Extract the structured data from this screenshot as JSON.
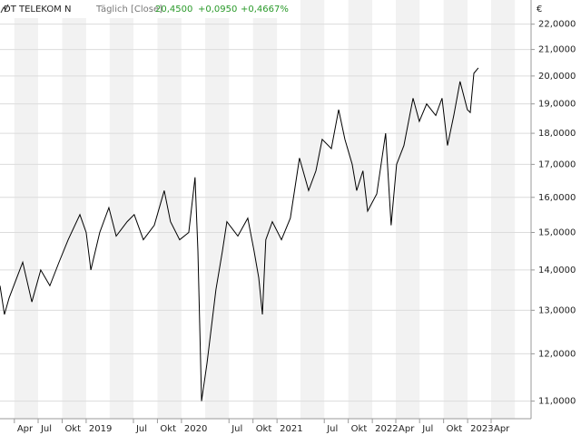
{
  "chart_data": {
    "type": "line",
    "title": "DT TELEKOM N",
    "subtitle": "Täglich [Close]",
    "last_value": "20,4500",
    "change": "+0,0950",
    "change_percent": "+0,4667%",
    "unit": "€",
    "log_scale": true,
    "grid": true,
    "series": [
      {
        "name": "DT TELEKOM N",
        "color": "#000000",
        "x": [
          "2018-02-05",
          "2018-02-22",
          "2018-03-12",
          "2018-05-03",
          "2018-06-07",
          "2018-07-11",
          "2018-08-15",
          "2018-09-19",
          "2018-10-24",
          "2018-12-08",
          "2019-01-01",
          "2019-01-19",
          "2019-02-22",
          "2019-03-29",
          "2019-04-26",
          "2019-06-07",
          "2019-07-04",
          "2019-08-08",
          "2019-09-19",
          "2019-10-27",
          "2019-11-20",
          "2019-12-25",
          "2020-01-29",
          "2020-02-22",
          "2020-03-04",
          "2020-03-18",
          "2020-04-08",
          "2020-05-12",
          "2020-06-06",
          "2020-06-23",
          "2020-08-04",
          "2020-09-11",
          "2020-10-05",
          "2020-10-23",
          "2020-11-06",
          "2020-11-19",
          "2020-12-14",
          "2021-01-18",
          "2021-02-21",
          "2021-03-28",
          "2021-05-02",
          "2021-05-30",
          "2021-06-23",
          "2021-07-28",
          "2021-08-25",
          "2021-09-18",
          "2021-10-16",
          "2021-11-02",
          "2021-11-26",
          "2021-12-14",
          "2022-01-18",
          "2022-02-21",
          "2022-03-14",
          "2022-04-04",
          "2022-05-02",
          "2022-06-06",
          "2022-06-30",
          "2022-07-28",
          "2022-09-01",
          "2022-09-25",
          "2022-10-16",
          "2022-11-09",
          "2022-12-03",
          "2022-12-31",
          "2023-01-11",
          "2023-01-25",
          "2023-02-11"
        ],
        "values": [
          13.6,
          12.9,
          13.3,
          14.2,
          13.2,
          14.0,
          13.6,
          14.2,
          14.8,
          15.5,
          15.0,
          14.0,
          15.0,
          15.7,
          14.9,
          15.3,
          15.5,
          14.8,
          15.2,
          16.2,
          15.3,
          14.8,
          15.0,
          16.6,
          14.5,
          11.0,
          11.8,
          13.5,
          14.5,
          15.3,
          14.9,
          15.4,
          14.5,
          13.8,
          12.9,
          14.8,
          15.3,
          14.8,
          15.4,
          17.2,
          16.2,
          16.8,
          17.8,
          17.5,
          18.8,
          17.8,
          17.0,
          16.2,
          16.8,
          15.6,
          16.1,
          18.0,
          15.2,
          17.0,
          17.6,
          19.2,
          18.4,
          19.0,
          18.6,
          19.2,
          17.6,
          18.6,
          19.8,
          18.8,
          18.7,
          20.1,
          20.3
        ]
      }
    ],
    "xlim": [
      "2018-02-05",
      "2023-09-01"
    ],
    "xticks": [
      {
        "value": "2018-04-01",
        "label": "Apr"
      },
      {
        "value": "2018-07-01",
        "label": "Jul"
      },
      {
        "value": "2018-10-01",
        "label": "Okt"
      },
      {
        "value": "2019-01-01",
        "label": "2019"
      },
      {
        "value": "2019-07-01",
        "label": "Jul"
      },
      {
        "value": "2019-10-01",
        "label": "Okt"
      },
      {
        "value": "2020-01-01",
        "label": "2020"
      },
      {
        "value": "2020-07-01",
        "label": "Jul"
      },
      {
        "value": "2020-10-01",
        "label": "Okt"
      },
      {
        "value": "2021-01-01",
        "label": "2021"
      },
      {
        "value": "2021-07-01",
        "label": "Jul"
      },
      {
        "value": "2021-10-01",
        "label": "Okt"
      },
      {
        "value": "2022-01-01",
        "label": "2022"
      },
      {
        "value": "2022-04-01",
        "label": "Apr"
      },
      {
        "value": "2022-07-01",
        "label": "Jul"
      },
      {
        "value": "2022-10-01",
        "label": "Okt"
      },
      {
        "value": "2023-01-01",
        "label": "2023"
      },
      {
        "value": "2023-04-01",
        "label": "Apr"
      }
    ],
    "ylim": [
      10.65,
      23.0
    ],
    "yticks": [
      {
        "value": 11,
        "label": "11,0000"
      },
      {
        "value": 12,
        "label": "12,0000"
      },
      {
        "value": 13,
        "label": "13,0000"
      },
      {
        "value": 14,
        "label": "14,0000"
      },
      {
        "value": 15,
        "label": "15,0000"
      },
      {
        "value": 16,
        "label": "16,0000"
      },
      {
        "value": 17,
        "label": "17,0000"
      },
      {
        "value": 18,
        "label": "18,0000"
      },
      {
        "value": 19,
        "label": "19,0000"
      },
      {
        "value": 20,
        "label": "20,0000"
      },
      {
        "value": 21,
        "label": "21,0000"
      },
      {
        "value": 22,
        "label": "22,0000"
      }
    ]
  }
}
